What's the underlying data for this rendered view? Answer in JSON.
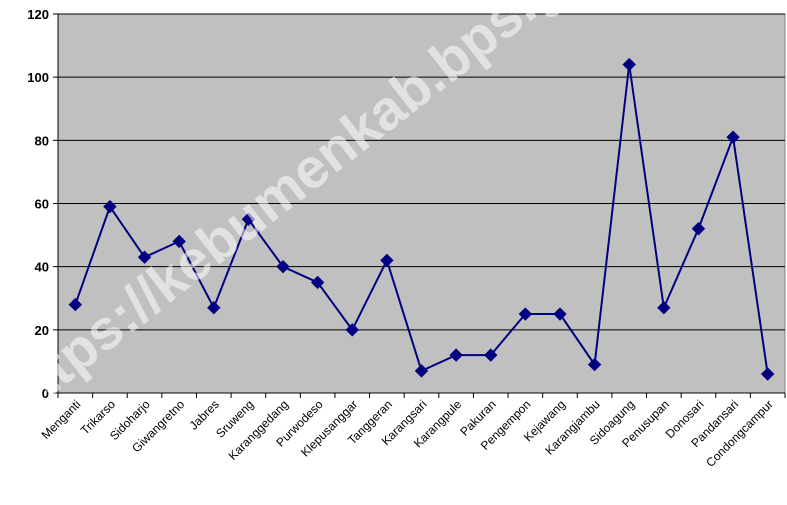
{
  "watermark": "https://kebumenkab.bps.go.id",
  "colors": {
    "plot_bg": "#c0c0c0",
    "line": "#000080",
    "marker": "#000080",
    "grid": "#000000"
  },
  "chart_data": {
    "type": "line",
    "categories": [
      "Menganti",
      "Trikarso",
      "Sidoharjo",
      "Giwangretno",
      "Jabres",
      "Sruweng",
      "Karanggedang",
      "Purwodeso",
      "Klepusanggar",
      "Tanggeran",
      "Karangsari",
      "Karangpule",
      "Pakuran",
      "Pengempon",
      "Kejawang",
      "Karangjambu",
      "Sidoagung",
      "Penusupan",
      "Donosari",
      "Pandansari",
      "Condongcampur"
    ],
    "series": [
      {
        "values": [
          28,
          59,
          43,
          48,
          27,
          55,
          40,
          35,
          20,
          42,
          7,
          12,
          12,
          25,
          25,
          9,
          104,
          27,
          52,
          81,
          6
        ]
      }
    ],
    "ylim": [
      0,
      120
    ],
    "yticks": [
      0,
      20,
      40,
      60,
      80,
      100,
      120
    ],
    "grid": true,
    "legend": "none",
    "marker": "diamond"
  }
}
